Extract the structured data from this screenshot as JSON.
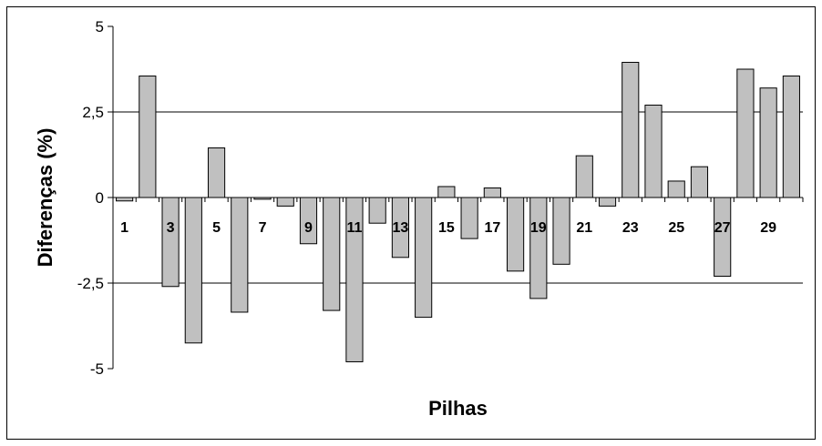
{
  "chart_data": {
    "type": "bar",
    "title": "",
    "xlabel": "Pilhas",
    "ylabel": "Diferenças (%)",
    "ylim": [
      -5,
      5
    ],
    "y_ticks": [
      5,
      2.5,
      0,
      -2.5,
      -5
    ],
    "y_tick_labels": [
      "5",
      "2,5",
      "0",
      "-2,5",
      "-5"
    ],
    "gridlines": "horizontal",
    "legend": "none",
    "bar_color": "#c0c0c0",
    "categories": [
      "1",
      "2",
      "3",
      "4",
      "5",
      "6",
      "7",
      "8",
      "9",
      "10",
      "11",
      "12",
      "13",
      "14",
      "15",
      "16",
      "17",
      "18",
      "19",
      "20",
      "21",
      "22",
      "23",
      "24",
      "25",
      "26",
      "27",
      "28",
      "29",
      "30"
    ],
    "x_tick_labels": [
      "1",
      "3",
      "5",
      "7",
      "9",
      "11",
      "13",
      "15",
      "17",
      "19",
      "21",
      "23",
      "25",
      "27",
      "29"
    ],
    "values": [
      -0.1,
      3.55,
      -2.6,
      -4.25,
      1.45,
      -3.35,
      -0.05,
      -0.25,
      -1.35,
      -3.3,
      -4.8,
      -0.75,
      -1.75,
      -3.5,
      0.32,
      -1.2,
      0.28,
      -2.15,
      -2.95,
      -1.95,
      1.22,
      -0.25,
      3.95,
      2.7,
      0.48,
      0.9,
      -2.3,
      3.75,
      3.2,
      3.55
    ]
  }
}
